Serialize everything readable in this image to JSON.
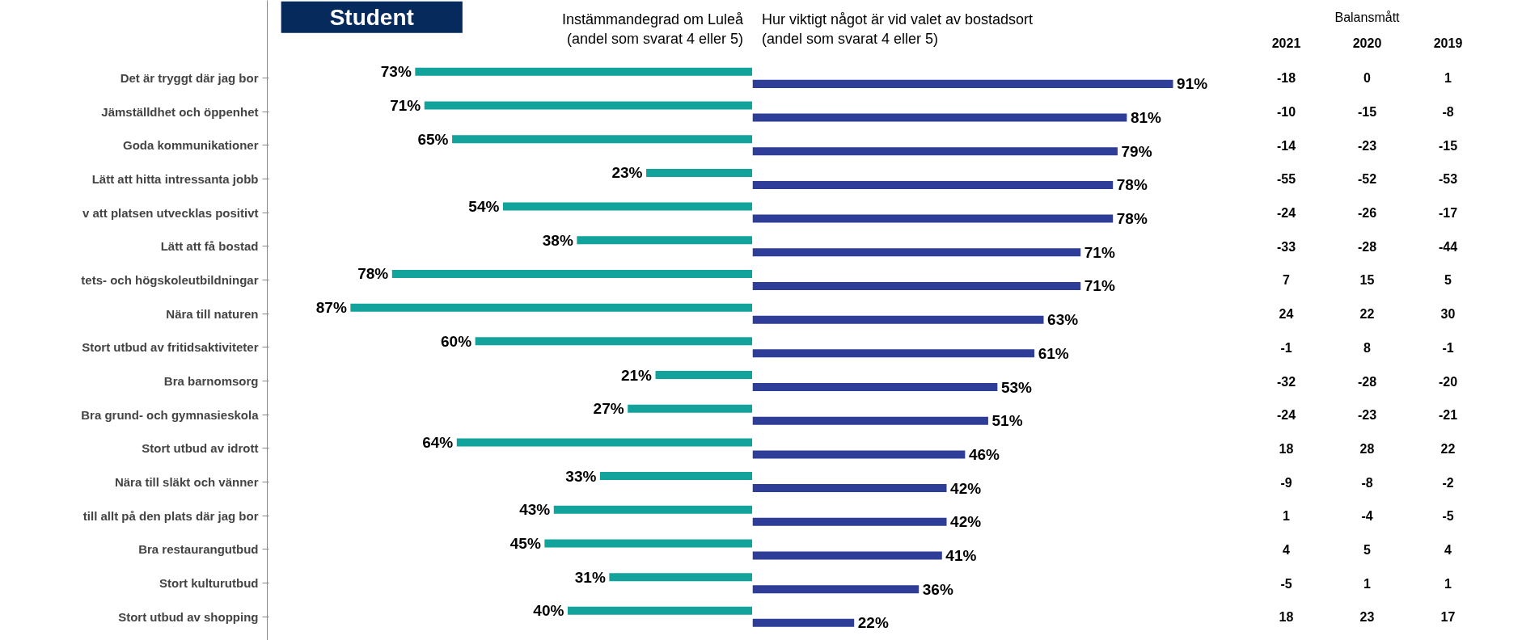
{
  "chart_data": [
    {
      "type": "bar",
      "orientation": "horizontal",
      "title": "Student",
      "subtitle": "Instämmandegrad om Luleå\n(andel som svarat 4 eller 5)",
      "tick_labels": "y",
      "xlim": [
        105,
        0
      ],
      "categories": [
        "Det är tryggt där jag bor",
        "Jämställdhet och öppenhet",
        "Goda kommunikationer",
        "Lätt att hitta intressanta jobb",
        "v att platsen utvecklas positivt",
        "Lätt att få bostad",
        "tets- och högskoleutbildningar",
        "Nära till naturen",
        "Stort utbud av fritidsaktiviteter",
        "Bra barnomsorg",
        "Bra grund- och gymnasieskola",
        "Stort utbud av idrott",
        "Nära till släkt och vänner",
        "till allt på den plats där jag bor",
        "Bra restaurangutbud",
        "Stort kulturutbud",
        "Stort utbud av shopping"
      ],
      "series": [
        {
          "color": "#12a39c",
          "values": [
            73,
            71,
            65,
            23,
            54,
            38,
            78,
            87,
            60,
            21,
            27,
            64,
            33,
            43,
            45,
            31,
            40
          ],
          "value_labels": [
            "73%",
            "71%",
            "65%",
            "23%",
            "54%",
            "38%",
            "78%",
            "87%",
            "60%",
            "21%",
            "27%",
            "64%",
            "33%",
            "43%",
            "45%",
            "31%",
            "40%"
          ]
        }
      ]
    },
    {
      "type": "bar",
      "orientation": "horizontal",
      "title": "Hur viktigt något är vid valet av bostadsort\n(andel som svarat 4 eller 5)",
      "tick_labels": false,
      "xlim": [
        0,
        105
      ],
      "categories": [
        null,
        null,
        null,
        null,
        null,
        null,
        null,
        null,
        null,
        null,
        null,
        null,
        null,
        null,
        null,
        null,
        null
      ],
      "series": [
        {
          "color": "#2e3d98",
          "values": [
            91,
            81,
            79,
            78,
            78,
            71,
            71,
            63,
            61,
            53,
            51,
            46,
            42,
            42,
            41,
            36,
            22
          ],
          "value_labels": [
            "91%",
            "81%",
            "79%",
            "78%",
            "78%",
            "71%",
            "71%",
            "63%",
            "61%",
            "53%",
            "51%",
            "46%",
            "42%",
            "42%",
            "41%",
            "36%",
            "22%"
          ]
        }
      ]
    },
    {
      "type": "heatmap",
      "title": "Balansmått",
      "categories": [
        "2021",
        "2020",
        "2019"
      ],
      "data_labels": true,
      "tick_labels": "x",
      "y_categories": [
        null,
        null,
        null,
        null,
        null,
        null,
        null,
        null,
        null,
        null,
        null,
        null,
        null,
        null,
        null,
        null,
        null
      ],
      "cells": [
        [
          -18,
          0,
          1
        ],
        [
          -10,
          -15,
          -8
        ],
        [
          -14,
          -23,
          -15
        ],
        [
          -55,
          -52,
          -53
        ],
        [
          -24,
          -26,
          -17
        ],
        [
          -33,
          -28,
          -44
        ],
        [
          7,
          15,
          5
        ],
        [
          24,
          22,
          30
        ],
        [
          -1,
          8,
          -1
        ],
        [
          -32,
          -28,
          -20
        ],
        [
          -24,
          -23,
          -21
        ],
        [
          18,
          28,
          22
        ],
        [
          -9,
          -8,
          -2
        ],
        [
          1,
          -4,
          -5
        ],
        [
          4,
          5,
          4
        ],
        [
          -5,
          1,
          1
        ],
        [
          18,
          23,
          17
        ]
      ]
    }
  ]
}
